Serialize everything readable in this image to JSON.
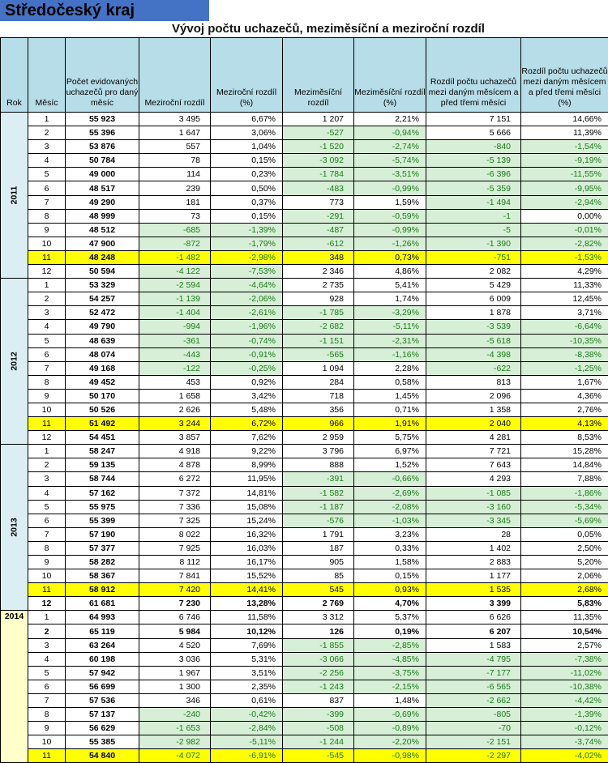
{
  "region_title": "Středočeský kraj",
  "subtitle": "Vývoj počtu uchazečů, meziměsíční a meziroční rozdíl",
  "headers": [
    "Rok",
    "Měsíc",
    "Počet evidovaných uchazečů pro daný měsíc",
    "Meziroční rozdíl",
    "Meziroční rozdíl (%)",
    "Meziměsíční rozdíl",
    "Meziměsíční rozdíl (%)",
    "Rozdíl počtu uchazečů mezi daným měsícem a před třemi měsíci",
    "Rozdíl počtu uchazečů mezi daným měsícem a před třemi měsíci (%)"
  ],
  "colors": {
    "header_bg": "#b7dde8",
    "negative_bg": "#d7efd6",
    "negative_text": "#1a7a1a",
    "highlight": "#ffff00",
    "title_bg": "#4472c4"
  },
  "years": [
    {
      "year": "2011",
      "rows": [
        {
          "m": "1",
          "count": "55 923",
          "yoy": "3 495",
          "yoyp": "6,67%",
          "mom": "1 207",
          "momp": "2,21%",
          "q": "7 151",
          "qp": "14,66%"
        },
        {
          "m": "2",
          "count": "55 396",
          "yoy": "1 647",
          "yoyp": "3,06%",
          "mom": "-527",
          "momp": "-0,94%",
          "q": "5 666",
          "qp": "11,39%"
        },
        {
          "m": "3",
          "count": "53 876",
          "yoy": "557",
          "yoyp": "1,04%",
          "mom": "-1 520",
          "momp": "-2,74%",
          "q": "-840",
          "qp": "-1,54%"
        },
        {
          "m": "4",
          "count": "50 784",
          "yoy": "78",
          "yoyp": "0,15%",
          "mom": "-3 092",
          "momp": "-5,74%",
          "q": "-5 139",
          "qp": "-9,19%"
        },
        {
          "m": "5",
          "count": "49 000",
          "yoy": "114",
          "yoyp": "0,23%",
          "mom": "-1 784",
          "momp": "-3,51%",
          "q": "-6 396",
          "qp": "-11,55%"
        },
        {
          "m": "6",
          "count": "48 517",
          "yoy": "239",
          "yoyp": "0,50%",
          "mom": "-483",
          "momp": "-0,99%",
          "q": "-5 359",
          "qp": "-9,95%"
        },
        {
          "m": "7",
          "count": "49 290",
          "yoy": "181",
          "yoyp": "0,37%",
          "mom": "773",
          "momp": "1,59%",
          "q": "-1 494",
          "qp": "-2,94%"
        },
        {
          "m": "8",
          "count": "48 999",
          "yoy": "73",
          "yoyp": "0,15%",
          "mom": "-291",
          "momp": "-0,59%",
          "q": "-1",
          "qp": "0,00%"
        },
        {
          "m": "9",
          "count": "48 512",
          "yoy": "-685",
          "yoyp": "-1,39%",
          "mom": "-487",
          "momp": "-0,99%",
          "q": "-5",
          "qp": "-0,01%"
        },
        {
          "m": "10",
          "count": "47 900",
          "yoy": "-872",
          "yoyp": "-1,79%",
          "mom": "-612",
          "momp": "-1,26%",
          "q": "-1 390",
          "qp": "-2,82%"
        },
        {
          "m": "11",
          "count": "48 248",
          "yoy": "-1 482",
          "yoyp": "-2,98%",
          "mom": "348",
          "momp": "0,73%",
          "q": "-751",
          "qp": "-1,53%",
          "hl": true
        },
        {
          "m": "12",
          "count": "50 594",
          "yoy": "-4 122",
          "yoyp": "-7,53%",
          "mom": "2 346",
          "momp": "4,86%",
          "q": "2 082",
          "qp": "4,29%"
        }
      ]
    },
    {
      "year": "2012",
      "rows": [
        {
          "m": "1",
          "count": "53 329",
          "yoy": "-2 594",
          "yoyp": "-4,64%",
          "mom": "2 735",
          "momp": "5,41%",
          "q": "5 429",
          "qp": "11,33%"
        },
        {
          "m": "2",
          "count": "54 257",
          "yoy": "-1 139",
          "yoyp": "-2,06%",
          "mom": "928",
          "momp": "1,74%",
          "q": "6 009",
          "qp": "12,45%"
        },
        {
          "m": "3",
          "count": "52 472",
          "yoy": "-1 404",
          "yoyp": "-2,61%",
          "mom": "-1 785",
          "momp": "-3,29%",
          "q": "1 878",
          "qp": "3,71%"
        },
        {
          "m": "4",
          "count": "49 790",
          "yoy": "-994",
          "yoyp": "-1,96%",
          "mom": "-2 682",
          "momp": "-5,11%",
          "q": "-3 539",
          "qp": "-6,64%"
        },
        {
          "m": "5",
          "count": "48 639",
          "yoy": "-361",
          "yoyp": "-0,74%",
          "mom": "-1 151",
          "momp": "-2,31%",
          "q": "-5 618",
          "qp": "-10,35%"
        },
        {
          "m": "6",
          "count": "48 074",
          "yoy": "-443",
          "yoyp": "-0,91%",
          "mom": "-565",
          "momp": "-1,16%",
          "q": "-4 398",
          "qp": "-8,38%"
        },
        {
          "m": "7",
          "count": "49 168",
          "yoy": "-122",
          "yoyp": "-0,25%",
          "mom": "1 094",
          "momp": "2,28%",
          "q": "-622",
          "qp": "-1,25%"
        },
        {
          "m": "8",
          "count": "49 452",
          "yoy": "453",
          "yoyp": "0,92%",
          "mom": "284",
          "momp": "0,58%",
          "q": "813",
          "qp": "1,67%"
        },
        {
          "m": "9",
          "count": "50 170",
          "yoy": "1 658",
          "yoyp": "3,42%",
          "mom": "718",
          "momp": "1,45%",
          "q": "2 096",
          "qp": "4,36%"
        },
        {
          "m": "10",
          "count": "50 526",
          "yoy": "2 626",
          "yoyp": "5,48%",
          "mom": "356",
          "momp": "0,71%",
          "q": "1 358",
          "qp": "2,76%"
        },
        {
          "m": "11",
          "count": "51 492",
          "yoy": "3 244",
          "yoyp": "6,72%",
          "mom": "966",
          "momp": "1,91%",
          "q": "2 040",
          "qp": "4,13%",
          "hl": true
        },
        {
          "m": "12",
          "count": "54 451",
          "yoy": "3 857",
          "yoyp": "7,62%",
          "mom": "2 959",
          "momp": "5,75%",
          "q": "4 281",
          "qp": "8,53%"
        }
      ]
    },
    {
      "year": "2013",
      "rows": [
        {
          "m": "1",
          "count": "58 247",
          "yoy": "4 918",
          "yoyp": "9,22%",
          "mom": "3 796",
          "momp": "6,97%",
          "q": "7 721",
          "qp": "15,28%"
        },
        {
          "m": "2",
          "count": "59 135",
          "yoy": "4 878",
          "yoyp": "8,99%",
          "mom": "888",
          "momp": "1,52%",
          "q": "7 643",
          "qp": "14,84%"
        },
        {
          "m": "3",
          "count": "58 744",
          "yoy": "6 272",
          "yoyp": "11,95%",
          "mom": "-391",
          "momp": "-0,66%",
          "q": "4 293",
          "qp": "7,88%"
        },
        {
          "m": "4",
          "count": "57 162",
          "yoy": "7 372",
          "yoyp": "14,81%",
          "mom": "-1 582",
          "momp": "-2,69%",
          "q": "-1 085",
          "qp": "-1,86%"
        },
        {
          "m": "5",
          "count": "55 975",
          "yoy": "7 336",
          "yoyp": "15,08%",
          "mom": "-1 187",
          "momp": "-2,08%",
          "q": "-3 160",
          "qp": "-5,34%"
        },
        {
          "m": "6",
          "count": "55 399",
          "yoy": "7 325",
          "yoyp": "15,24%",
          "mom": "-576",
          "momp": "-1,03%",
          "q": "-3 345",
          "qp": "-5,69%"
        },
        {
          "m": "7",
          "count": "57 190",
          "yoy": "8 022",
          "yoyp": "16,32%",
          "mom": "1 791",
          "momp": "3,23%",
          "q": "28",
          "qp": "0,05%"
        },
        {
          "m": "8",
          "count": "57 377",
          "yoy": "7 925",
          "yoyp": "16,03%",
          "mom": "187",
          "momp": "0,33%",
          "q": "1 402",
          "qp": "2,50%"
        },
        {
          "m": "9",
          "count": "58 282",
          "yoy": "8 112",
          "yoyp": "16,17%",
          "mom": "905",
          "momp": "1,58%",
          "q": "2 883",
          "qp": "5,20%"
        },
        {
          "m": "10",
          "count": "58 367",
          "yoy": "7 841",
          "yoyp": "15,52%",
          "mom": "85",
          "momp": "0,15%",
          "q": "1 177",
          "qp": "2,06%"
        },
        {
          "m": "11",
          "count": "58 912",
          "yoy": "7 420",
          "yoyp": "14,41%",
          "mom": "545",
          "momp": "0,93%",
          "q": "1 535",
          "qp": "2,68%",
          "hl": true
        },
        {
          "m": "12",
          "count": "61 681",
          "yoy": "7 230",
          "yoyp": "13,28%",
          "mom": "2 769",
          "momp": "4,70%",
          "q": "3 399",
          "qp": "5,83%",
          "bold": true
        }
      ]
    },
    {
      "year": "2014",
      "rows": [
        {
          "m": "1",
          "count": "64 993",
          "yoy": "6 746",
          "yoyp": "11,58%",
          "mom": "3 312",
          "momp": "5,37%",
          "q": "6 626",
          "qp": "11,35%"
        },
        {
          "m": "2",
          "count": "65 119",
          "yoy": "5 984",
          "yoyp": "10,12%",
          "mom": "126",
          "momp": "0,19%",
          "q": "6 207",
          "qp": "10,54%",
          "bold": true
        },
        {
          "m": "3",
          "count": "63 264",
          "yoy": "4 520",
          "yoyp": "7,69%",
          "mom": "-1 855",
          "momp": "-2,85%",
          "q": "1 583",
          "qp": "2,57%"
        },
        {
          "m": "4",
          "count": "60 198",
          "yoy": "3 036",
          "yoyp": "5,31%",
          "mom": "-3 066",
          "momp": "-4,85%",
          "q": "-4 795",
          "qp": "-7,38%"
        },
        {
          "m": "5",
          "count": "57 942",
          "yoy": "1 967",
          "yoyp": "3,51%",
          "mom": "-2 256",
          "momp": "-3,75%",
          "q": "-7 177",
          "qp": "-11,02%"
        },
        {
          "m": "6",
          "count": "56 699",
          "yoy": "1 300",
          "yoyp": "2,35%",
          "mom": "-1 243",
          "momp": "-2,15%",
          "q": "-6 565",
          "qp": "-10,38%"
        },
        {
          "m": "7",
          "count": "57 536",
          "yoy": "346",
          "yoyp": "0,61%",
          "mom": "837",
          "momp": "1,48%",
          "q": "-2 662",
          "qp": "-4,42%"
        },
        {
          "m": "8",
          "count": "57 137",
          "yoy": "-240",
          "yoyp": "-0,42%",
          "mom": "-399",
          "momp": "-0,69%",
          "q": "-805",
          "qp": "-1,39%"
        },
        {
          "m": "9",
          "count": "56 629",
          "yoy": "-1 653",
          "yoyp": "-2,84%",
          "mom": "-508",
          "momp": "-0,89%",
          "q": "-70",
          "qp": "-0,12%"
        },
        {
          "m": "10",
          "count": "55 385",
          "yoy": "-2 982",
          "yoyp": "-5,11%",
          "mom": "-1 244",
          "momp": "-2,20%",
          "q": "-2 151",
          "qp": "-3,74%"
        },
        {
          "m": "11",
          "count": "54 840",
          "yoy": "-4 072",
          "yoyp": "-6,91%",
          "mom": "-545",
          "momp": "-0,98%",
          "q": "-2 297",
          "qp": "-4,02%",
          "hl": true
        }
      ]
    }
  ]
}
